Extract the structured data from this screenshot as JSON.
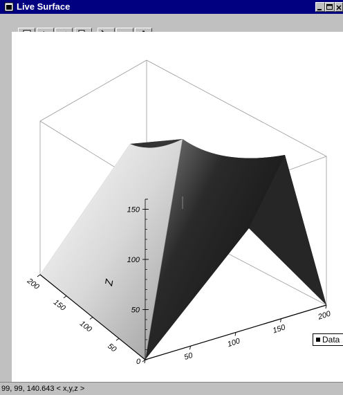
{
  "window": {
    "title": "Live Surface",
    "icons": [
      "app-icon",
      "minimize-icon",
      "maximize-icon",
      "close-icon"
    ]
  },
  "toolbar": {
    "buttons": [
      {
        "name": "print",
        "icon": "printer-icon"
      },
      {
        "name": "undo",
        "icon": "undo-icon"
      },
      {
        "name": "redo",
        "icon": "redo-icon"
      },
      {
        "name": "copy",
        "icon": "copy-icon"
      },
      {
        "name": "line",
        "icon": "line-tool-icon"
      },
      {
        "name": "rectangle",
        "icon": "rectangle-tool-icon"
      },
      {
        "name": "text",
        "label": "A",
        "icon": "text-tool-icon"
      }
    ]
  },
  "legend": {
    "label": "Data"
  },
  "status": {
    "cursor_readout": "99, 99, 140.643  < x,y,z >"
  },
  "chart_data": {
    "type": "surface",
    "x_ticks": [
      "0",
      "50",
      "100",
      "150",
      "200"
    ],
    "y_ticks": [
      "0",
      "50",
      "100",
      "150",
      "200"
    ],
    "z_ticks": [
      "50",
      "100",
      "150"
    ],
    "zlabel": "Z",
    "xlim": [
      0,
      200
    ],
    "ylim": [
      0,
      200
    ],
    "zlim": [
      0,
      160
    ],
    "peak": {
      "x": 99,
      "y": 99,
      "z": 140.643
    },
    "legend": [
      "Data"
    ],
    "legend_placement": "right"
  }
}
